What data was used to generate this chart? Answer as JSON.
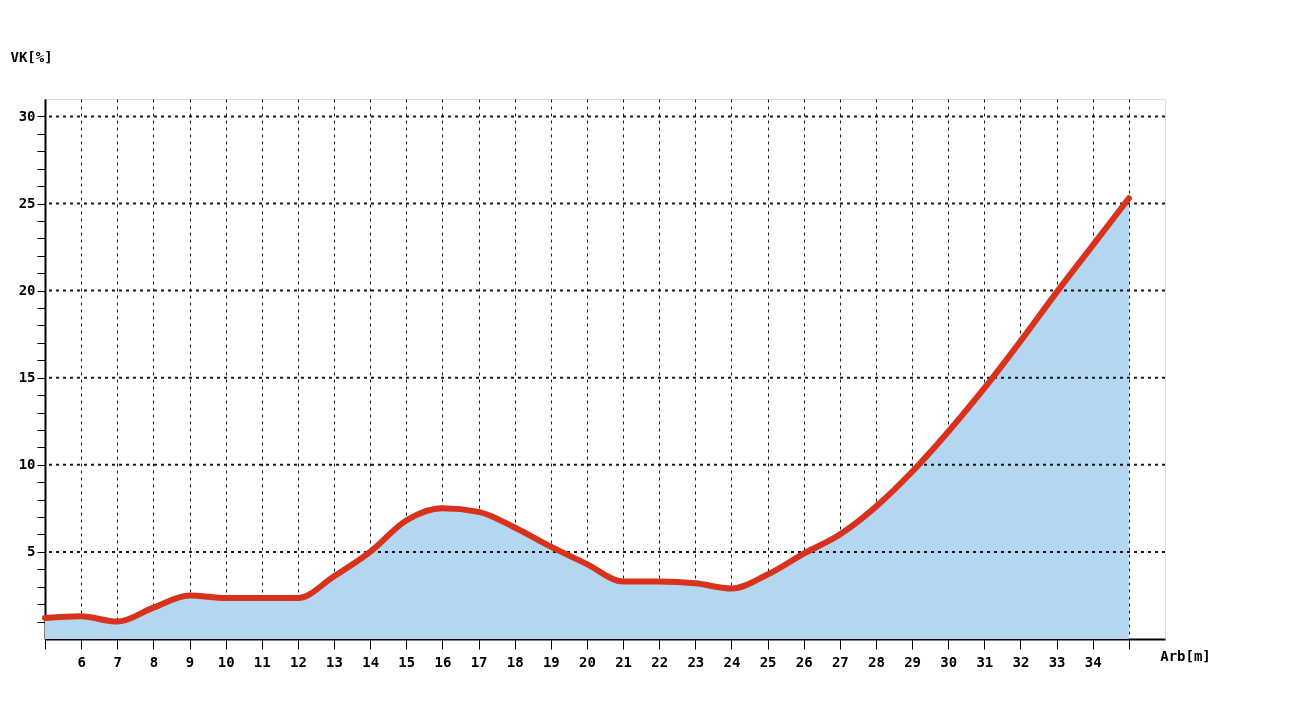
{
  "chart_data": {
    "type": "area",
    "xlabel": "Arb[m]",
    "ylabel": "VK[%]",
    "x": [
      5,
      6,
      7,
      8,
      9,
      10,
      11,
      12,
      13,
      14,
      15,
      16,
      17,
      18,
      19,
      20,
      21,
      22,
      23,
      24,
      25,
      26,
      27,
      28,
      29,
      30,
      31,
      32,
      33,
      34,
      35
    ],
    "series": [
      {
        "color": "#b3d7f0",
        "values": [
          1.2,
          1.3,
          1.0,
          1.8,
          2.5,
          2.35,
          2.35,
          2.35,
          3.6,
          5.0,
          6.8,
          7.5,
          7.3,
          6.4,
          5.3,
          4.3,
          3.3,
          3.3,
          3.2,
          2.9,
          3.7,
          4.9,
          6.0,
          7.6,
          9.6,
          11.9,
          14.4,
          17.1,
          19.9,
          22.6,
          25.3
        ]
      },
      {
        "type": "line",
        "color": "#d9321c",
        "values": [
          1.2,
          1.3,
          1.0,
          1.8,
          2.5,
          2.35,
          2.35,
          2.35,
          3.6,
          5.0,
          6.8,
          7.5,
          7.3,
          6.4,
          5.3,
          4.3,
          3.3,
          3.3,
          3.2,
          2.9,
          3.7,
          4.9,
          6.0,
          7.6,
          9.6,
          11.9,
          14.4,
          17.1,
          19.9,
          22.6,
          25.3
        ]
      }
    ],
    "xlim": [
      5,
      36
    ],
    "ylim": [
      0,
      31
    ],
    "xticks": [
      {
        "value": 5,
        "label": null
      },
      6,
      7,
      8,
      9,
      10,
      11,
      12,
      13,
      14,
      15,
      16,
      17,
      18,
      19,
      20,
      21,
      22,
      23,
      24,
      25,
      26,
      27,
      28,
      29,
      30,
      31,
      32,
      33,
      34,
      {
        "value": 35,
        "label": null
      }
    ],
    "yticks": [
      {
        "value": 1,
        "label": null
      },
      {
        "value": 2,
        "label": null
      },
      {
        "value": 3,
        "label": null
      },
      {
        "value": 4,
        "label": null
      },
      5,
      {
        "value": 6,
        "label": null
      },
      {
        "value": 7,
        "label": null
      },
      {
        "value": 8,
        "label": null
      },
      {
        "value": 9,
        "label": null
      },
      10,
      {
        "value": 11,
        "label": null
      },
      {
        "value": 12,
        "label": null
      },
      {
        "value": 13,
        "label": null
      },
      {
        "value": 14,
        "label": null
      },
      15,
      {
        "value": 16,
        "label": null
      },
      {
        "value": 17,
        "label": null
      },
      {
        "value": 18,
        "label": null
      },
      {
        "value": 19,
        "label": null
      },
      20,
      {
        "value": 21,
        "label": null
      },
      {
        "value": 22,
        "label": null
      },
      {
        "value": 23,
        "label": null
      },
      {
        "value": 24,
        "label": null
      },
      25,
      {
        "value": 26,
        "label": null
      },
      {
        "value": 27,
        "label": null
      },
      {
        "value": 28,
        "label": null
      },
      {
        "value": 29,
        "label": null
      },
      30
    ],
    "grid": true,
    "marker": "none",
    "line_style": "solid"
  }
}
